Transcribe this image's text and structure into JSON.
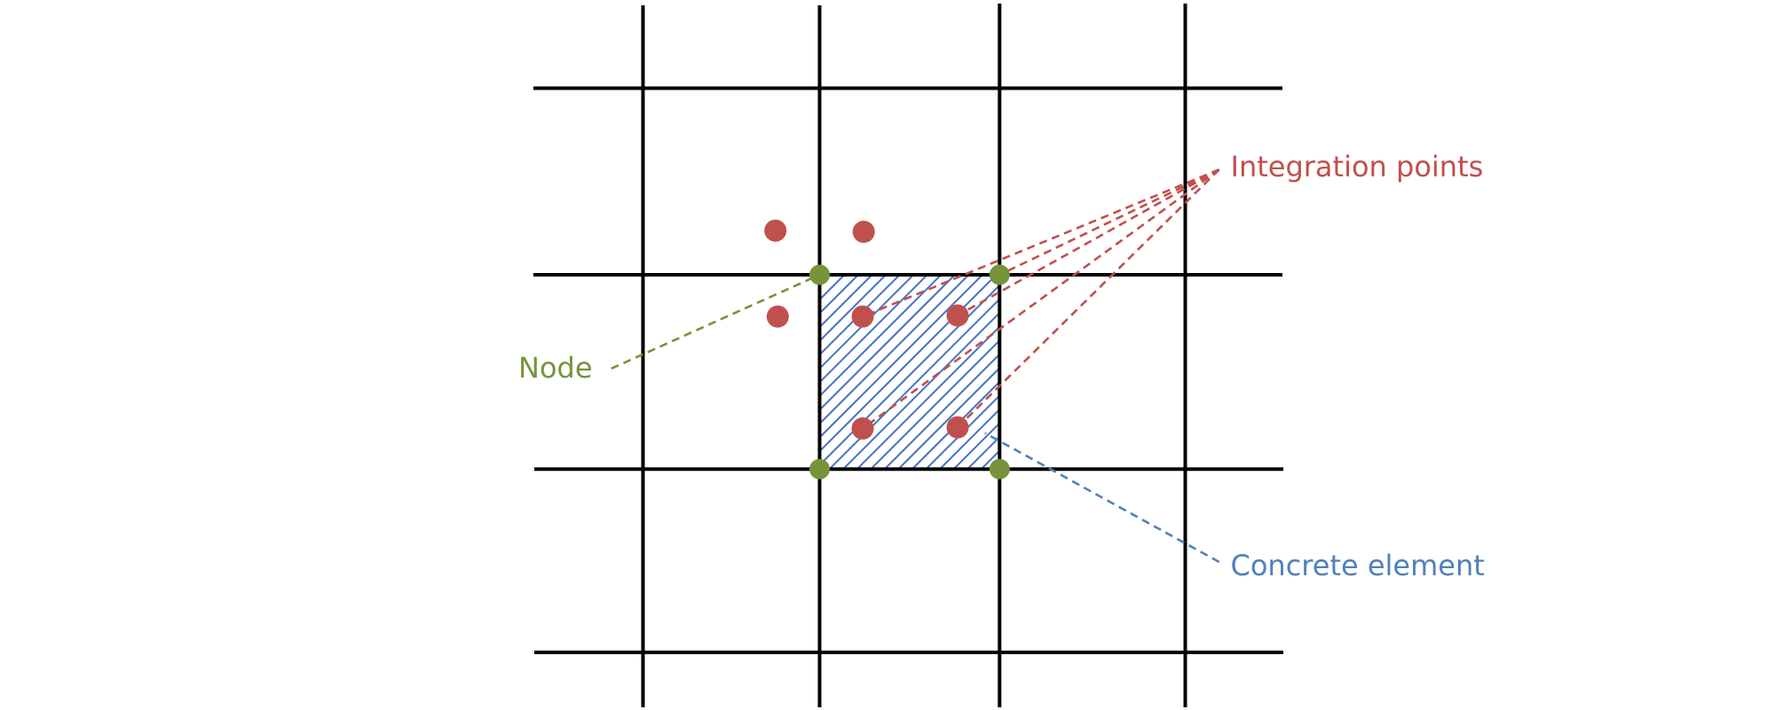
{
  "labels": {
    "integration_points": "Integration points",
    "node": "Node",
    "concrete_element": "Concrete element"
  }
}
